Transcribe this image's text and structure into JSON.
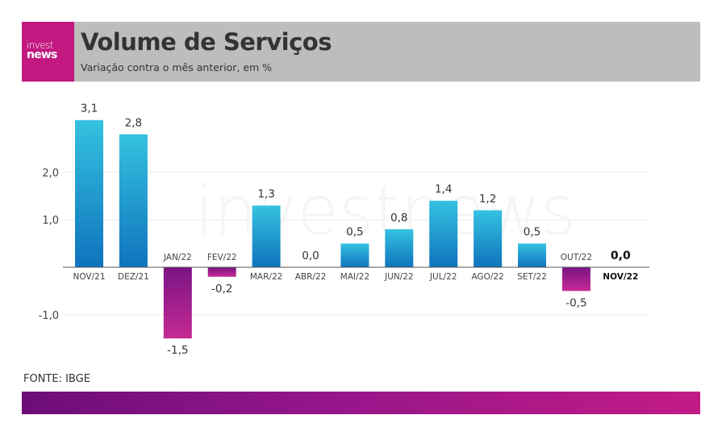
{
  "header": {
    "logo_top": "invest",
    "logo_bottom": "news",
    "title": "Volume de Serviços",
    "subtitle": "Variação contra o mês anterior, em %"
  },
  "watermark": "investnews",
  "source": "FONTE: IBGE",
  "colors": {
    "header_bg": "#bdbdbd",
    "logo_bg": "#c2187f",
    "positive_bar_top": "#35c2e0",
    "positive_bar_bottom": "#0f73bd",
    "negative_bar_top": "#7a1484",
    "negative_bar_bottom": "#c52a93",
    "footer_start": "#6d0d78",
    "footer_end": "#c21b86"
  },
  "chart_data": {
    "type": "bar",
    "title": "Volume de Serviços",
    "subtitle": "Variação contra o mês anterior, em %",
    "xlabel": "",
    "ylabel": "",
    "categories": [
      "NOV/21",
      "DEZ/21",
      "JAN/22",
      "FEV/22",
      "MAR/22",
      "ABR/22",
      "MAI/22",
      "JUN/22",
      "JUL/22",
      "AGO/22",
      "SET/22",
      "OUT/22",
      "NOV/22"
    ],
    "values": [
      3.1,
      2.8,
      -1.5,
      -0.2,
      1.3,
      0.0,
      0.5,
      0.8,
      1.4,
      1.2,
      0.5,
      -0.5,
      0.0
    ],
    "value_labels": [
      "3,1",
      "2,8",
      "-1,5",
      "-0,2",
      "1,3",
      "0,0",
      "0,5",
      "0,8",
      "1,4",
      "1,2",
      "0,5",
      "-0,5",
      "0,0"
    ],
    "highlighted_category": "NOV/22",
    "y_ticks": [
      -1.0,
      1.0,
      2.0
    ],
    "y_tick_labels": [
      "-1,0",
      "1,0",
      "2,0"
    ],
    "ylim": [
      -1.5,
      3.1
    ],
    "grid": true,
    "legend": "none"
  }
}
